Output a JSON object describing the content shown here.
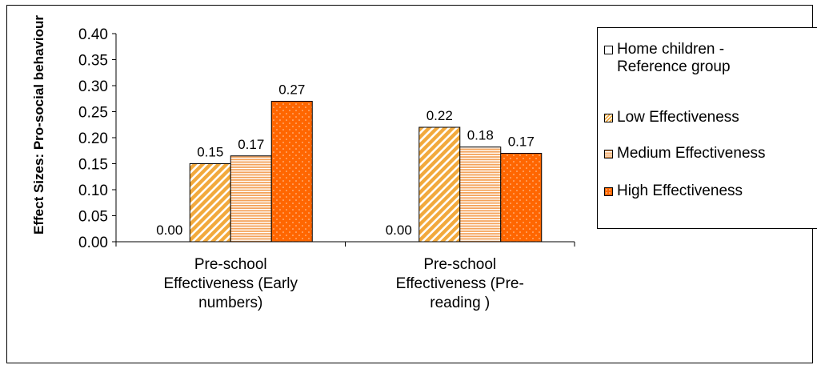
{
  "chart_data": {
    "type": "bar",
    "ylabel": "Effect Sizes: Pro-social behaviour",
    "xlabel": "",
    "ylim": [
      0,
      0.4
    ],
    "y_ticks": [
      "0.00",
      "0.05",
      "0.10",
      "0.15",
      "0.20",
      "0.25",
      "0.30",
      "0.35",
      "0.40"
    ],
    "categories": [
      "Pre-school\nEffectiveness (Early\nnumbers)",
      "Pre-school\nEffectiveness (Pre-\nreading )"
    ],
    "series": [
      {
        "name": "Home children -\nReference group",
        "values": [
          0.0,
          0.0
        ],
        "labels": [
          "0.00",
          "0.00"
        ],
        "color": "#ffffff",
        "pattern": "none"
      },
      {
        "name": "Low Effectiveness",
        "values": [
          0.15,
          0.22
        ],
        "labels": [
          "0.15",
          "0.22"
        ],
        "color": "#f2a93c",
        "pattern": "diagonal-stripes"
      },
      {
        "name": "Medium Effectiveness",
        "values": [
          0.165,
          0.182
        ],
        "labels": [
          "0.17",
          "0.18"
        ],
        "color": "#f4a259",
        "pattern": "horizontal-stripes"
      },
      {
        "name": "High Effectiveness",
        "values": [
          0.27,
          0.17
        ],
        "labels": [
          "0.27",
          "0.17"
        ],
        "color": "#ff6600",
        "pattern": "dots"
      }
    ],
    "grid": false,
    "legend_position": "right"
  }
}
